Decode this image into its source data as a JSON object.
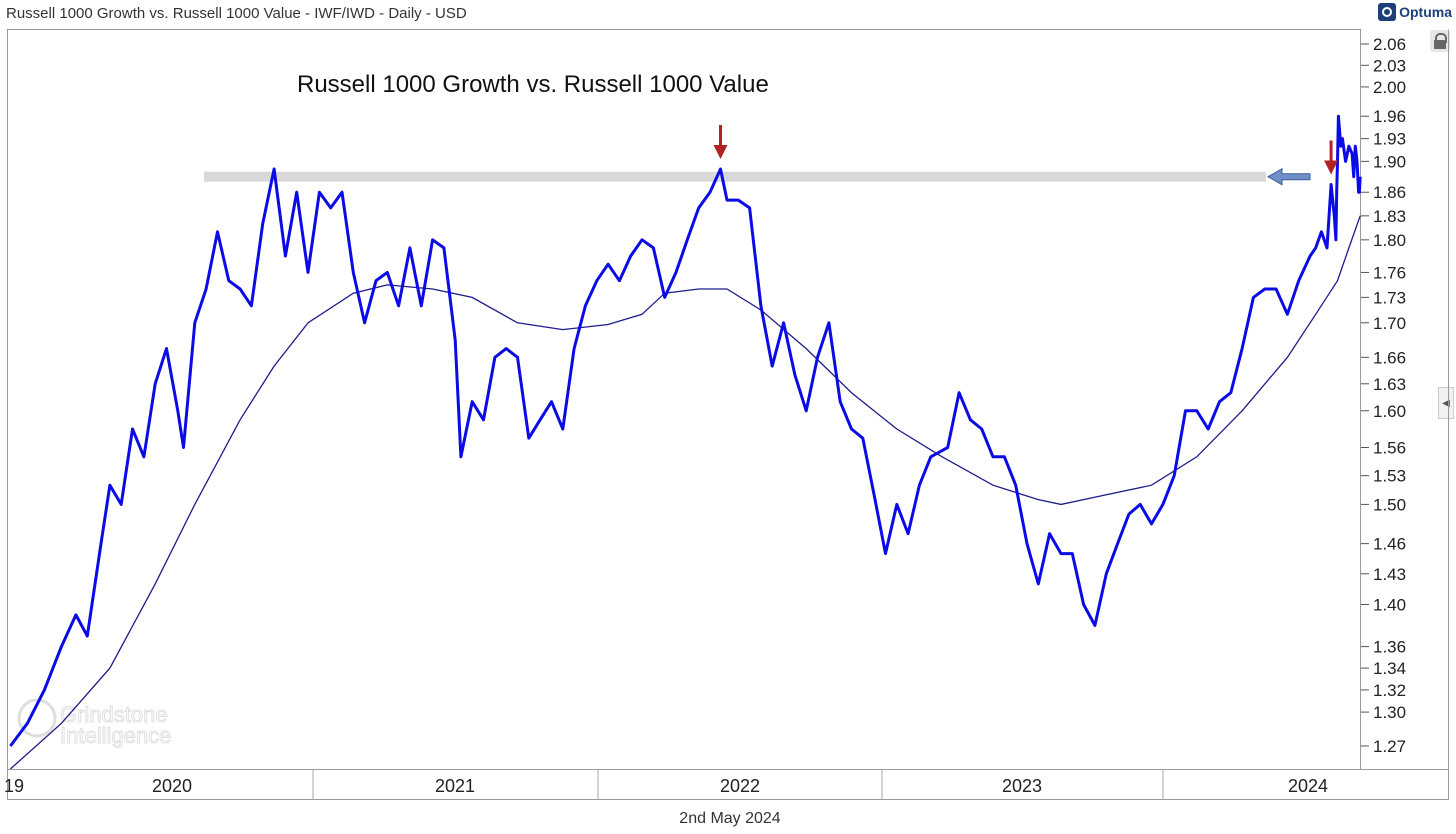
{
  "header": {
    "title": "Russell 1000 Growth vs. Russell 1000 Value - IWF/IWD - Daily - USD",
    "brand": "Optuma"
  },
  "footer": {
    "date": "2nd May 2024"
  },
  "watermark": {
    "line1": "Grindstone",
    "line2": "Intelligence"
  },
  "colors": {
    "price": "#0b0be6",
    "ma": "#1c1c8a",
    "arrow_down": "#b02323",
    "arrow_side": "#6f8fc8",
    "resistance": "#d9d9d9"
  },
  "chart_data": {
    "type": "line",
    "title": "Russell 1000 Growth vs. Russell 1000 Value",
    "xlabel": "",
    "ylabel": "",
    "x_tick_labels": [
      "19",
      "2020",
      "2021",
      "2022",
      "2023",
      "2024"
    ],
    "y_ticks": [
      2.06,
      2.03,
      2.0,
      1.96,
      1.93,
      1.9,
      1.86,
      1.83,
      1.8,
      1.76,
      1.73,
      1.7,
      1.66,
      1.63,
      1.6,
      1.56,
      1.53,
      1.5,
      1.46,
      1.43,
      1.4,
      1.36,
      1.34,
      1.32,
      1.3,
      1.27
    ],
    "ylim": [
      1.25,
      2.08
    ],
    "y_scale": "log",
    "xlim": [
      "2019-11-01",
      "2024-05-31"
    ],
    "resistance_level": 1.88,
    "series": [
      {
        "values": [
          [
            "2019-11-04",
            1.27
          ],
          [
            "2019-11-25",
            1.29
          ],
          [
            "2019-12-16",
            1.32
          ],
          [
            "2020-01-06",
            1.36
          ],
          [
            "2020-01-24",
            1.39
          ],
          [
            "2020-02-07",
            1.37
          ],
          [
            "2020-02-24",
            1.46
          ],
          [
            "2020-03-06",
            1.52
          ],
          [
            "2020-03-20",
            1.5
          ],
          [
            "2020-04-03",
            1.58
          ],
          [
            "2020-04-17",
            1.55
          ],
          [
            "2020-05-01",
            1.63
          ],
          [
            "2020-05-15",
            1.67
          ],
          [
            "2020-05-29",
            1.6
          ],
          [
            "2020-06-05",
            1.56
          ],
          [
            "2020-06-19",
            1.7
          ],
          [
            "2020-07-03",
            1.74
          ],
          [
            "2020-07-17",
            1.81
          ],
          [
            "2020-07-31",
            1.75
          ],
          [
            "2020-08-14",
            1.74
          ],
          [
            "2020-08-28",
            1.72
          ],
          [
            "2020-09-11",
            1.82
          ],
          [
            "2020-09-25",
            1.89
          ],
          [
            "2020-10-09",
            1.78
          ],
          [
            "2020-10-23",
            1.86
          ],
          [
            "2020-11-06",
            1.76
          ],
          [
            "2020-11-20",
            1.86
          ],
          [
            "2020-12-04",
            1.84
          ],
          [
            "2020-12-18",
            1.86
          ],
          [
            "2021-01-01",
            1.76
          ],
          [
            "2021-01-15",
            1.7
          ],
          [
            "2021-01-29",
            1.75
          ],
          [
            "2021-02-12",
            1.76
          ],
          [
            "2021-02-26",
            1.72
          ],
          [
            "2021-03-12",
            1.79
          ],
          [
            "2021-03-26",
            1.72
          ],
          [
            "2021-04-09",
            1.8
          ],
          [
            "2021-04-23",
            1.79
          ],
          [
            "2021-05-07",
            1.68
          ],
          [
            "2021-05-14",
            1.55
          ],
          [
            "2021-05-28",
            1.61
          ],
          [
            "2021-06-11",
            1.59
          ],
          [
            "2021-06-25",
            1.66
          ],
          [
            "2021-07-09",
            1.67
          ],
          [
            "2021-07-23",
            1.66
          ],
          [
            "2021-08-06",
            1.57
          ],
          [
            "2021-08-20",
            1.59
          ],
          [
            "2021-09-03",
            1.61
          ],
          [
            "2021-09-17",
            1.58
          ],
          [
            "2021-10-01",
            1.67
          ],
          [
            "2021-10-15",
            1.72
          ],
          [
            "2021-10-29",
            1.75
          ],
          [
            "2021-11-12",
            1.77
          ],
          [
            "2021-11-26",
            1.75
          ],
          [
            "2021-12-10",
            1.78
          ],
          [
            "2021-12-24",
            1.8
          ],
          [
            "2022-01-07",
            1.79
          ],
          [
            "2022-01-21",
            1.73
          ],
          [
            "2022-02-04",
            1.76
          ],
          [
            "2022-02-18",
            1.8
          ],
          [
            "2022-03-04",
            1.84
          ],
          [
            "2022-03-18",
            1.86
          ],
          [
            "2022-03-31",
            1.89
          ],
          [
            "2022-04-08",
            1.85
          ],
          [
            "2022-04-22",
            1.85
          ],
          [
            "2022-05-06",
            1.84
          ],
          [
            "2022-05-20",
            1.72
          ],
          [
            "2022-06-03",
            1.65
          ],
          [
            "2022-06-17",
            1.7
          ],
          [
            "2022-07-01",
            1.64
          ],
          [
            "2022-07-15",
            1.6
          ],
          [
            "2022-07-29",
            1.66
          ],
          [
            "2022-08-12",
            1.7
          ],
          [
            "2022-08-26",
            1.61
          ],
          [
            "2022-09-09",
            1.58
          ],
          [
            "2022-09-23",
            1.57
          ],
          [
            "2022-10-07",
            1.51
          ],
          [
            "2022-10-21",
            1.45
          ],
          [
            "2022-11-04",
            1.5
          ],
          [
            "2022-11-18",
            1.47
          ],
          [
            "2022-12-02",
            1.52
          ],
          [
            "2022-12-16",
            1.55
          ],
          [
            "2023-01-06",
            1.56
          ],
          [
            "2023-01-20",
            1.62
          ],
          [
            "2023-02-03",
            1.59
          ],
          [
            "2023-02-17",
            1.58
          ],
          [
            "2023-03-03",
            1.55
          ],
          [
            "2023-03-17",
            1.55
          ],
          [
            "2023-03-31",
            1.52
          ],
          [
            "2023-04-14",
            1.46
          ],
          [
            "2023-04-28",
            1.42
          ],
          [
            "2023-05-12",
            1.47
          ],
          [
            "2023-05-26",
            1.45
          ],
          [
            "2023-06-09",
            1.45
          ],
          [
            "2023-06-23",
            1.4
          ],
          [
            "2023-07-07",
            1.38
          ],
          [
            "2023-07-21",
            1.43
          ],
          [
            "2023-08-04",
            1.46
          ],
          [
            "2023-08-18",
            1.49
          ],
          [
            "2023-09-01",
            1.5
          ],
          [
            "2023-09-15",
            1.48
          ],
          [
            "2023-09-29",
            1.5
          ],
          [
            "2023-10-13",
            1.53
          ],
          [
            "2023-10-27",
            1.6
          ],
          [
            "2023-11-10",
            1.6
          ],
          [
            "2023-11-24",
            1.58
          ],
          [
            "2023-12-08",
            1.61
          ],
          [
            "2023-12-22",
            1.62
          ],
          [
            "2024-01-05",
            1.67
          ],
          [
            "2024-01-19",
            1.73
          ],
          [
            "2024-02-02",
            1.74
          ],
          [
            "2024-02-16",
            1.74
          ],
          [
            "2024-03-01",
            1.71
          ],
          [
            "2024-03-15",
            1.75
          ],
          [
            "2024-03-29",
            1.78
          ],
          [
            "2024-04-05",
            1.79
          ],
          [
            "2024-04-12",
            1.81
          ],
          [
            "2024-04-19",
            1.79
          ],
          [
            "2024-04-24",
            1.87
          ],
          [
            "2024-04-26",
            1.85
          ],
          [
            "2024-04-28",
            1.83
          ],
          [
            "2024-04-30",
            1.8
          ],
          [
            "2024-05-01",
            1.86
          ],
          [
            "2024-05-02",
            1.9
          ],
          [
            "2024-05-03",
            1.96
          ],
          [
            "2024-05-06",
            1.92
          ],
          [
            "2024-05-08",
            1.93
          ],
          [
            "2024-05-12",
            1.9
          ],
          [
            "2024-05-16",
            1.92
          ],
          [
            "2024-05-20",
            1.91
          ],
          [
            "2024-05-22",
            1.88
          ],
          [
            "2024-05-24",
            1.92
          ],
          [
            "2024-05-26",
            1.9
          ],
          [
            "2024-05-28",
            1.86
          ],
          [
            "2024-05-29",
            1.86
          ],
          [
            "2024-05-30",
            1.88
          ]
        ]
      },
      {
        "values": [
          [
            "2019-11-04",
            1.25
          ],
          [
            "2020-01-06",
            1.29
          ],
          [
            "2020-03-06",
            1.34
          ],
          [
            "2020-05-01",
            1.42
          ],
          [
            "2020-06-19",
            1.5
          ],
          [
            "2020-08-14",
            1.59
          ],
          [
            "2020-09-25",
            1.65
          ],
          [
            "2020-11-06",
            1.7
          ],
          [
            "2021-01-01",
            1.735
          ],
          [
            "2021-02-12",
            1.745
          ],
          [
            "2021-04-09",
            1.74
          ],
          [
            "2021-05-28",
            1.73
          ],
          [
            "2021-07-23",
            1.7
          ],
          [
            "2021-09-17",
            1.692
          ],
          [
            "2021-11-12",
            1.698
          ],
          [
            "2021-12-24",
            1.71
          ],
          [
            "2022-01-21",
            1.735
          ],
          [
            "2022-03-04",
            1.74
          ],
          [
            "2022-04-08",
            1.74
          ],
          [
            "2022-05-20",
            1.715
          ],
          [
            "2022-07-15",
            1.67
          ],
          [
            "2022-09-09",
            1.62
          ],
          [
            "2022-11-04",
            1.58
          ],
          [
            "2022-12-30",
            1.55
          ],
          [
            "2023-03-03",
            1.52
          ],
          [
            "2023-04-28",
            1.505
          ],
          [
            "2023-05-26",
            1.5
          ],
          [
            "2023-06-23",
            1.505
          ],
          [
            "2023-07-21",
            1.51
          ],
          [
            "2023-09-15",
            1.52
          ],
          [
            "2023-11-10",
            1.55
          ],
          [
            "2024-01-05",
            1.6
          ],
          [
            "2024-03-01",
            1.66
          ],
          [
            "2024-04-05",
            1.71
          ],
          [
            "2024-05-02",
            1.75
          ],
          [
            "2024-05-16",
            1.79
          ],
          [
            "2024-05-30",
            1.83
          ]
        ]
      }
    ],
    "annotations": [
      {
        "type": "arrow-down",
        "x": "2022-03-31",
        "y": 1.89
      },
      {
        "type": "arrow-down",
        "x": "2024-04-24",
        "y": 1.87
      },
      {
        "type": "arrow-left",
        "x": "2024-05-31",
        "y": 1.88
      }
    ]
  }
}
